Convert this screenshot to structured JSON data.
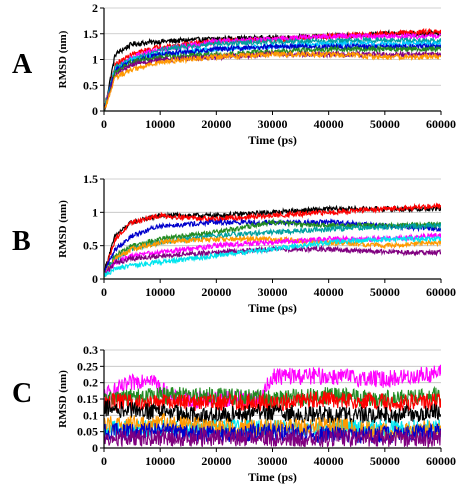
{
  "chart_data": [
    {
      "type": "line",
      "panel_label": "A",
      "ylabel": "RMSD  (nm)",
      "xlabel": "Time (ps)",
      "xlim": [
        0,
        60000
      ],
      "ylim": [
        0,
        2
      ],
      "xticks": [
        0,
        10000,
        20000,
        30000,
        40000,
        50000,
        60000
      ],
      "yticks": [
        0,
        0.5,
        1,
        1.5,
        2
      ],
      "ytick_labels": [
        "0",
        "0.5",
        "1",
        "1.5",
        "2"
      ],
      "grid": "horizontal",
      "series": [
        {
          "color": "#000000",
          "values_x": [
            0,
            2000,
            5000,
            10000,
            20000,
            30000,
            40000,
            50000,
            60000
          ],
          "values_y": [
            0,
            1.1,
            1.3,
            1.35,
            1.4,
            1.42,
            1.45,
            1.5,
            1.5
          ]
        },
        {
          "color": "#ff0000",
          "values_x": [
            0,
            2000,
            5000,
            10000,
            20000,
            30000,
            40000,
            50000,
            60000
          ],
          "values_y": [
            0,
            0.9,
            1.1,
            1.25,
            1.35,
            1.38,
            1.45,
            1.5,
            1.55
          ]
        },
        {
          "color": "#ff00ff",
          "values_x": [
            0,
            2000,
            5000,
            10000,
            20000,
            30000,
            40000,
            50000,
            60000
          ],
          "values_y": [
            0,
            0.8,
            1.05,
            1.2,
            1.35,
            1.4,
            1.45,
            1.45,
            1.45
          ]
        },
        {
          "color": "#00a0a0",
          "values_x": [
            0,
            2000,
            5000,
            10000,
            20000,
            30000,
            40000,
            50000,
            60000
          ],
          "values_y": [
            0,
            0.85,
            1.0,
            1.2,
            1.3,
            1.35,
            1.35,
            1.38,
            1.35
          ]
        },
        {
          "color": "#00c8ff",
          "values_x": [
            0,
            2000,
            5000,
            10000,
            20000,
            30000,
            40000,
            50000,
            60000
          ],
          "values_y": [
            0,
            0.8,
            1.0,
            1.1,
            1.2,
            1.25,
            1.3,
            1.3,
            1.3
          ]
        },
        {
          "color": "#0000cc",
          "values_x": [
            0,
            2000,
            5000,
            10000,
            20000,
            30000,
            40000,
            50000,
            60000
          ],
          "values_y": [
            0,
            0.8,
            0.95,
            1.1,
            1.2,
            1.25,
            1.25,
            1.25,
            1.25
          ]
        },
        {
          "color": "#228b22",
          "values_x": [
            0,
            2000,
            5000,
            10000,
            20000,
            30000,
            40000,
            50000,
            60000
          ],
          "values_y": [
            0,
            0.75,
            0.95,
            1.05,
            1.1,
            1.15,
            1.2,
            1.2,
            1.2
          ]
        },
        {
          "color": "#800080",
          "values_x": [
            0,
            2000,
            5000,
            10000,
            20000,
            30000,
            40000,
            50000,
            60000
          ],
          "values_y": [
            0,
            0.7,
            0.9,
            1.0,
            1.05,
            1.1,
            1.1,
            1.1,
            1.1
          ]
        },
        {
          "color": "#ff9900",
          "values_x": [
            0,
            2000,
            5000,
            10000,
            20000,
            30000,
            40000,
            50000,
            60000
          ],
          "values_y": [
            0,
            0.65,
            0.8,
            0.95,
            1.05,
            1.1,
            1.1,
            1.05,
            1.05
          ]
        }
      ]
    },
    {
      "type": "line",
      "panel_label": "B",
      "ylabel": "RMSD  (nm)",
      "xlabel": "Time (ps)",
      "xlim": [
        0,
        60000
      ],
      "ylim": [
        0,
        1.5
      ],
      "xticks": [
        0,
        10000,
        20000,
        30000,
        40000,
        50000,
        60000
      ],
      "yticks": [
        0,
        0.5,
        1,
        1.5
      ],
      "ytick_labels": [
        "0",
        "0.5",
        "1",
        "1.5"
      ],
      "grid": "horizontal",
      "series": [
        {
          "color": "#000000",
          "values_x": [
            0,
            2000,
            5000,
            10000,
            20000,
            30000,
            40000,
            50000,
            60000
          ],
          "values_y": [
            0.1,
            0.65,
            0.85,
            0.95,
            0.95,
            1.0,
            1.05,
            1.05,
            1.05
          ]
        },
        {
          "color": "#ff0000",
          "values_x": [
            0,
            2000,
            5000,
            10000,
            20000,
            30000,
            40000,
            50000,
            60000
          ],
          "values_y": [
            0.1,
            0.6,
            0.85,
            0.95,
            0.9,
            0.95,
            1.0,
            1.05,
            1.1
          ]
        },
        {
          "color": "#0000cc",
          "values_x": [
            0,
            2000,
            5000,
            10000,
            20000,
            30000,
            40000,
            50000,
            60000
          ],
          "values_y": [
            0.1,
            0.45,
            0.65,
            0.8,
            0.85,
            0.85,
            0.85,
            0.8,
            0.75
          ]
        },
        {
          "color": "#228b22",
          "values_x": [
            0,
            2000,
            5000,
            10000,
            20000,
            30000,
            40000,
            50000,
            60000
          ],
          "values_y": [
            0.05,
            0.35,
            0.5,
            0.6,
            0.7,
            0.85,
            0.8,
            0.8,
            0.82
          ]
        },
        {
          "color": "#00a0a0",
          "values_x": [
            0,
            2000,
            5000,
            10000,
            20000,
            30000,
            40000,
            50000,
            60000
          ],
          "values_y": [
            0.05,
            0.3,
            0.45,
            0.55,
            0.65,
            0.7,
            0.75,
            0.78,
            0.8
          ]
        },
        {
          "color": "#ff9900",
          "values_x": [
            0,
            2000,
            5000,
            10000,
            20000,
            30000,
            40000,
            50000,
            60000
          ],
          "values_y": [
            0.05,
            0.3,
            0.45,
            0.55,
            0.6,
            0.6,
            0.55,
            0.5,
            0.55
          ]
        },
        {
          "color": "#ff00ff",
          "values_x": [
            0,
            2000,
            5000,
            10000,
            20000,
            30000,
            40000,
            50000,
            60000
          ],
          "values_y": [
            0.05,
            0.25,
            0.35,
            0.4,
            0.5,
            0.55,
            0.6,
            0.6,
            0.65
          ]
        },
        {
          "color": "#800080",
          "values_x": [
            0,
            2000,
            5000,
            10000,
            20000,
            30000,
            40000,
            50000,
            60000
          ],
          "values_y": [
            0.05,
            0.25,
            0.3,
            0.35,
            0.4,
            0.45,
            0.45,
            0.4,
            0.4
          ]
        },
        {
          "color": "#00e5ee",
          "values_x": [
            0,
            2000,
            5000,
            10000,
            20000,
            30000,
            40000,
            50000,
            60000
          ],
          "values_y": [
            0.05,
            0.15,
            0.2,
            0.25,
            0.35,
            0.45,
            0.55,
            0.6,
            0.6
          ]
        }
      ]
    },
    {
      "type": "line",
      "panel_label": "C",
      "ylabel": "RMSD  (nm)",
      "xlabel": "Time (ps)",
      "xlim": [
        0,
        60000
      ],
      "ylim": [
        0,
        0.3
      ],
      "xticks": [
        0,
        10000,
        20000,
        30000,
        40000,
        50000,
        60000
      ],
      "yticks": [
        0,
        0.05,
        0.1,
        0.15,
        0.2,
        0.25,
        0.3
      ],
      "ytick_labels": [
        "0",
        "0.05",
        "0.1",
        "0.15",
        "0.2",
        "0.25",
        "0.3"
      ],
      "grid": "horizontal",
      "series": [
        {
          "color": "#ff00ff",
          "values_x": [
            0,
            8000,
            12000,
            20000,
            28000,
            30000,
            40000,
            50000,
            60000
          ],
          "values_y": [
            0.16,
            0.22,
            0.15,
            0.15,
            0.15,
            0.22,
            0.22,
            0.21,
            0.23
          ]
        },
        {
          "color": "#228b22",
          "values_x": [
            0,
            10000,
            20000,
            30000,
            40000,
            50000,
            60000
          ],
          "values_y": [
            0.15,
            0.16,
            0.16,
            0.15,
            0.16,
            0.15,
            0.16
          ]
        },
        {
          "color": "#ff0000",
          "values_x": [
            0,
            10000,
            20000,
            30000,
            40000,
            50000,
            60000
          ],
          "values_y": [
            0.14,
            0.14,
            0.14,
            0.14,
            0.15,
            0.14,
            0.14
          ]
        },
        {
          "color": "#000000",
          "values_x": [
            0,
            10000,
            20000,
            30000,
            40000,
            50000,
            60000
          ],
          "values_y": [
            0.12,
            0.11,
            0.1,
            0.11,
            0.1,
            0.1,
            0.11
          ]
        },
        {
          "color": "#00e5ee",
          "values_x": [
            0,
            10000,
            20000,
            30000,
            40000,
            50000,
            60000
          ],
          "values_y": [
            0.06,
            0.06,
            0.06,
            0.06,
            0.06,
            0.06,
            0.06
          ]
        },
        {
          "color": "#ff9900",
          "values_x": [
            0,
            10000,
            20000,
            30000,
            40000,
            50000,
            60000
          ],
          "values_y": [
            0.07,
            0.08,
            0.06,
            0.06,
            0.07,
            0.05,
            0.06
          ]
        },
        {
          "color": "#0000cc",
          "values_x": [
            0,
            10000,
            20000,
            30000,
            40000,
            50000,
            60000
          ],
          "values_y": [
            0.05,
            0.05,
            0.04,
            0.05,
            0.04,
            0.04,
            0.05
          ]
        },
        {
          "color": "#800080",
          "values_x": [
            0,
            10000,
            20000,
            30000,
            40000,
            50000,
            60000
          ],
          "values_y": [
            0.03,
            0.03,
            0.03,
            0.03,
            0.03,
            0.03,
            0.03
          ]
        }
      ]
    }
  ]
}
